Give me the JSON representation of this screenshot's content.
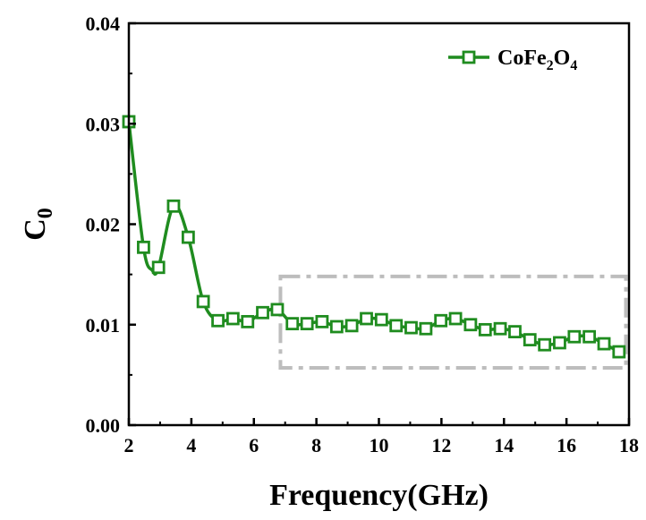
{
  "chart_data": {
    "type": "line",
    "xlabel": "Frequency(GHz)",
    "ylabel": {
      "base": "C",
      "sub": "0"
    },
    "xlim": [
      2,
      18
    ],
    "ylim": [
      0,
      0.04
    ],
    "xticks": [
      "2",
      "4",
      "6",
      "8",
      "10",
      "12",
      "14",
      "16",
      "18"
    ],
    "yticks": [
      "0.00",
      "0.01",
      "0.02",
      "0.03",
      "0.04"
    ],
    "grid": false,
    "legend_position": "top-right",
    "series": [
      {
        "name": {
          "parts": [
            {
              "t": "CoFe",
              "sub": false
            },
            {
              "t": "2",
              "sub": true
            },
            {
              "t": "O",
              "sub": false
            },
            {
              "t": "4",
              "sub": true
            }
          ]
        },
        "color": "#1f8c1f",
        "marker": "open-square",
        "x": [
          2.0,
          2.47,
          2.95,
          3.43,
          3.9,
          4.38,
          4.85,
          5.33,
          5.8,
          6.28,
          6.75,
          7.23,
          7.7,
          8.18,
          8.65,
          9.13,
          9.6,
          10.08,
          10.55,
          11.03,
          11.5,
          11.98,
          12.45,
          12.93,
          13.4,
          13.88,
          14.35,
          14.83,
          15.3,
          15.78,
          16.25,
          16.73,
          17.2,
          17.68
        ],
        "y": [
          0.0302,
          0.0177,
          0.0157,
          0.0218,
          0.0187,
          0.0123,
          0.0104,
          0.0106,
          0.0103,
          0.0112,
          0.0115,
          0.0101,
          0.0101,
          0.0103,
          0.0098,
          0.0099,
          0.0106,
          0.0105,
          0.0099,
          0.0097,
          0.0096,
          0.0104,
          0.0106,
          0.01,
          0.0095,
          0.0096,
          0.0093,
          0.0085,
          0.008,
          0.0082,
          0.0088,
          0.0088,
          0.0081,
          0.0073
        ],
        "dip_x": 2.75,
        "dip_y": 0.0154
      }
    ],
    "annotation_box": {
      "x_range": [
        6.85,
        17.9
      ],
      "y_range": [
        0.0057,
        0.0148
      ],
      "style": "dash-dot",
      "color": "#bdbdbd"
    }
  }
}
